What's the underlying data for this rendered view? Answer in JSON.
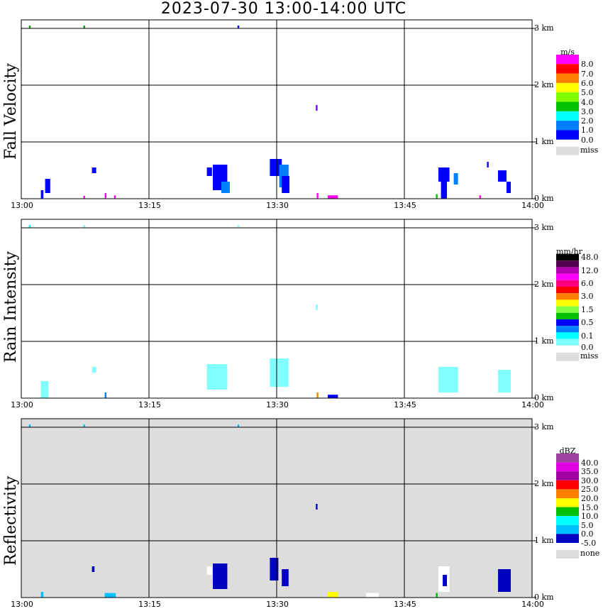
{
  "title": "2023-07-30  13:00-14:00 UTC",
  "x_ticks": [
    "13:00",
    "13:15",
    "13:30",
    "13:45",
    "14:00"
  ],
  "y_ticks": [
    "0 km",
    "1 km",
    "2 km",
    "3 km"
  ],
  "chart_data": [
    {
      "type": "heatmap",
      "ylabel": "Fall Velocity",
      "xlim_minutes": [
        0,
        60
      ],
      "ylim_km": [
        0,
        3.15
      ],
      "bg": "#ffffff",
      "legend": {
        "unit": "m/s",
        "colors": [
          "#ff00ff",
          "#ff0000",
          "#ff8000",
          "#ffff00",
          "#80ff00",
          "#00c000",
          "#00ffff",
          "#0080ff",
          "#0000ff"
        ],
        "labels": [
          "8.0",
          "7.0",
          "6.0",
          "5.0",
          "4.0",
          "3.0",
          "2.0",
          "1.0",
          "0.0"
        ],
        "miss": "miss"
      },
      "cells": [
        [
          0.9,
          1.1,
          3.0,
          3.05,
          "#00a000"
        ],
        [
          7.3,
          7.5,
          3.0,
          3.05,
          "#00a000"
        ],
        [
          25.4,
          25.6,
          3.0,
          3.05,
          "#0000ff"
        ],
        [
          2.3,
          2.6,
          0,
          0.15,
          "#0000ff"
        ],
        [
          2.8,
          3.4,
          0.1,
          0.35,
          "#0000ff"
        ],
        [
          8.3,
          8.8,
          0.45,
          0.55,
          "#0000ff"
        ],
        [
          21.8,
          22.4,
          0.4,
          0.55,
          "#0000ff"
        ],
        [
          22.5,
          24.2,
          0.15,
          0.6,
          "#0000ff"
        ],
        [
          23.5,
          24.5,
          0.1,
          0.3,
          "#0080ff"
        ],
        [
          29.2,
          30.6,
          0.4,
          0.7,
          "#0000ff"
        ],
        [
          30.3,
          31.4,
          0.2,
          0.6,
          "#0080ff"
        ],
        [
          30.6,
          31.5,
          0.1,
          0.4,
          "#0000ff"
        ],
        [
          34.6,
          34.8,
          1.55,
          1.65,
          "#8000ff"
        ],
        [
          49.0,
          50.3,
          0.3,
          0.55,
          "#0000ff"
        ],
        [
          49.3,
          50.0,
          0,
          0.3,
          "#0000ff"
        ],
        [
          50.8,
          51.3,
          0.25,
          0.45,
          "#0080ff"
        ],
        [
          54.7,
          54.9,
          0.55,
          0.65,
          "#0000ff"
        ],
        [
          56.0,
          57.0,
          0.3,
          0.5,
          "#0000ff"
        ],
        [
          57.0,
          57.5,
          0.1,
          0.3,
          "#0000ff"
        ],
        [
          7.3,
          7.5,
          0,
          0.05,
          "#ff00ff"
        ],
        [
          9.8,
          10,
          0,
          0.1,
          "#ff00ff"
        ],
        [
          10.9,
          11.1,
          0,
          0.06,
          "#ff00ff"
        ],
        [
          34.7,
          34.9,
          0,
          0.1,
          "#ff00ff"
        ],
        [
          36.0,
          37.2,
          0,
          0.06,
          "#ff00ff"
        ],
        [
          48.7,
          48.9,
          0,
          0.08,
          "#00c000"
        ],
        [
          53.8,
          54,
          0,
          0.06,
          "#ff00ff"
        ]
      ]
    },
    {
      "type": "heatmap",
      "ylabel": "Rain Intensity",
      "xlim_minutes": [
        0,
        60
      ],
      "ylim_km": [
        0,
        3.15
      ],
      "bg": "#ffffff",
      "legend": {
        "unit": "mm/hr",
        "colors": [
          "#000000",
          "#500050",
          "#b000b0",
          "#ff00ff",
          "#ff0080",
          "#ff0000",
          "#ff8000",
          "#ffff00",
          "#80ff40",
          "#00c000",
          "#0000ff",
          "#0080ff",
          "#00ffff",
          "#80ffff"
        ],
        "labels": [
          "48.0",
          "12.0",
          "6.0",
          "3.0",
          "1.5",
          "0.5",
          "0.1",
          "0.0"
        ],
        "miss": "miss"
      },
      "cells": [
        [
          0.9,
          1.1,
          3.0,
          3.05,
          "#00ffff"
        ],
        [
          7.3,
          7.5,
          3.0,
          3.05,
          "#80ffff"
        ],
        [
          25.4,
          25.6,
          3.0,
          3.05,
          "#80ffff"
        ],
        [
          2.3,
          3.2,
          0,
          0.3,
          "#80ffff"
        ],
        [
          8.3,
          8.8,
          0.45,
          0.55,
          "#80ffff"
        ],
        [
          21.8,
          24.2,
          0.15,
          0.6,
          "#80ffff"
        ],
        [
          29.2,
          31.4,
          0.2,
          0.7,
          "#80ffff"
        ],
        [
          34.6,
          34.8,
          1.55,
          1.65,
          "#80ffff"
        ],
        [
          49.0,
          51.3,
          0.1,
          0.55,
          "#80ffff"
        ],
        [
          56.0,
          57.5,
          0.1,
          0.5,
          "#80ffff"
        ],
        [
          34.7,
          34.9,
          0,
          0.1,
          "#ff8000"
        ],
        [
          36.0,
          37.2,
          0,
          0.06,
          "#0000ff"
        ],
        [
          9.8,
          10,
          0,
          0.1,
          "#0080ff"
        ]
      ]
    },
    {
      "type": "heatmap",
      "ylabel": "Reflectivity",
      "xlim_minutes": [
        0,
        60
      ],
      "ylim_km": [
        0,
        3.15
      ],
      "bg": "#dddddd",
      "legend": {
        "unit": "dBZ",
        "colors": [
          "#a040a0",
          "#e000e0",
          "#a000a0",
          "#ff0000",
          "#ff8000",
          "#ffff00",
          "#00c000",
          "#00ffff",
          "#00c0ff",
          "#0000c0"
        ],
        "labels": [
          "40.0",
          "35.0",
          "30.0",
          "25.0",
          "20.0",
          "15.0",
          "10.0",
          "5.0",
          "0.0",
          "-5.0"
        ],
        "miss": "none"
      },
      "cells": [
        [
          0.9,
          1.1,
          3.0,
          3.05,
          "#00c0ff"
        ],
        [
          7.3,
          7.5,
          3.0,
          3.05,
          "#00c0ff"
        ],
        [
          25.4,
          25.6,
          3.0,
          3.05,
          "#00c0ff"
        ],
        [
          2.3,
          2.6,
          0,
          0.1,
          "#00c0ff"
        ],
        [
          8.3,
          8.6,
          0.45,
          0.55,
          "#0000c0"
        ],
        [
          22.5,
          24.2,
          0.15,
          0.6,
          "#0000c0"
        ],
        [
          21.8,
          22.4,
          0.4,
          0.55,
          "#ffffff"
        ],
        [
          29.2,
          30.2,
          0.3,
          0.7,
          "#0000c0"
        ],
        [
          30.6,
          31.4,
          0.2,
          0.5,
          "#0000c0"
        ],
        [
          34.6,
          34.8,
          1.55,
          1.65,
          "#0000c0"
        ],
        [
          49.0,
          50.3,
          0.1,
          0.55,
          "#ffffff"
        ],
        [
          49.5,
          50.0,
          0.2,
          0.4,
          "#0000c0"
        ],
        [
          56.0,
          57.5,
          0.1,
          0.5,
          "#0000c0"
        ],
        [
          40.5,
          42.0,
          0,
          0.08,
          "#ffffff"
        ],
        [
          36.0,
          37.2,
          0,
          0.1,
          "#ffff00"
        ],
        [
          48.7,
          48.9,
          0,
          0.08,
          "#00c000"
        ],
        [
          9.8,
          11.1,
          0,
          0.08,
          "#00c0ff"
        ]
      ]
    }
  ]
}
